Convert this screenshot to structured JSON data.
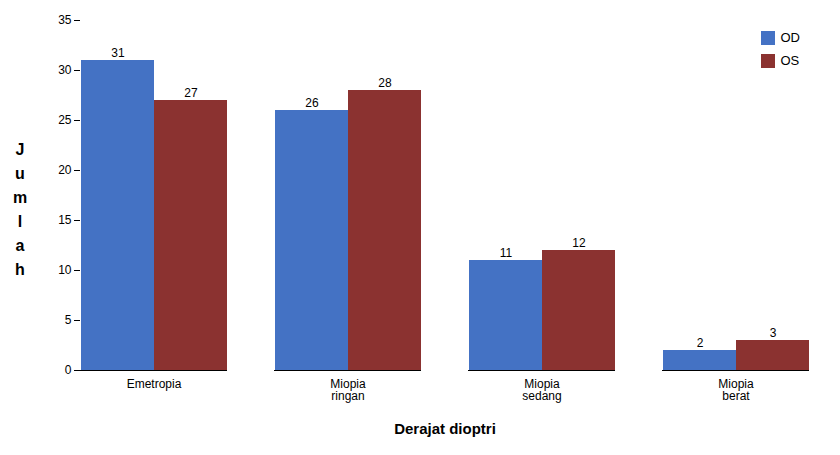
{
  "chart_data": {
    "type": "bar",
    "categories": [
      "Emetropia",
      "Miopia\nringan",
      "Miopia\nsedang",
      "Miopia\nberat"
    ],
    "series": [
      {
        "name": "OD",
        "color": "#4472C4",
        "values": [
          31,
          26,
          11,
          2
        ]
      },
      {
        "name": "OS",
        "color": "#8B3230",
        "values": [
          27,
          28,
          12,
          3
        ]
      }
    ],
    "xlabel": "Derajat dioptri",
    "ylabel": "Jumlah",
    "ylim": [
      0,
      35
    ],
    "yticks": [
      0,
      5,
      10,
      15,
      20,
      25,
      30,
      35
    ],
    "grid": false,
    "legend": "upper right",
    "data_labels": true
  }
}
